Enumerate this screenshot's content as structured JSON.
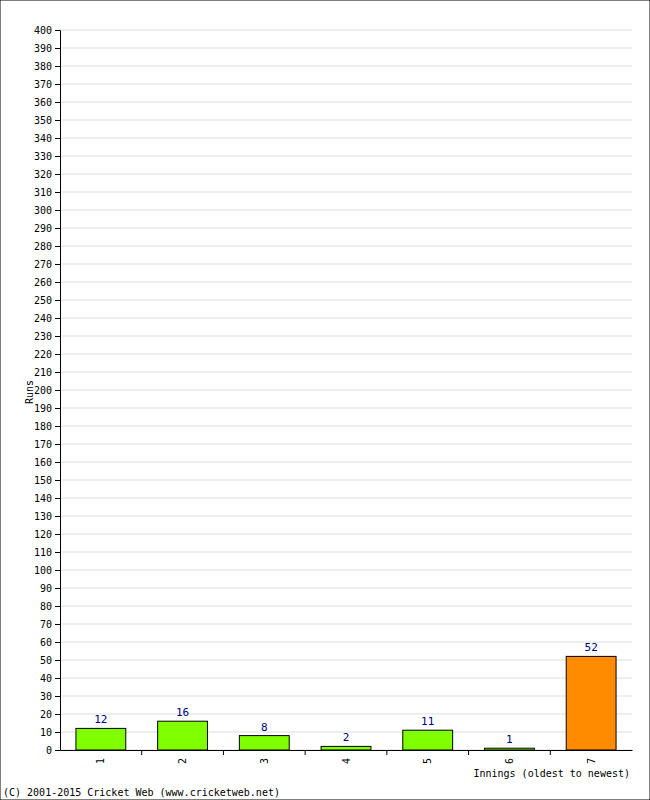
{
  "chart_data": {
    "type": "bar",
    "categories": [
      "1",
      "2",
      "3",
      "4",
      "5",
      "6",
      "7"
    ],
    "values": [
      12,
      16,
      8,
      2,
      11,
      1,
      52
    ],
    "colors": [
      "#80ff00",
      "#80ff00",
      "#80ff00",
      "#80ff00",
      "#80ff00",
      "#80ff00",
      "#ff8c00"
    ],
    "xlabel": "Innings (oldest to newest)",
    "ylabel": "Runs",
    "annotation": "(C) 2001-2015 Cricket Web (www.cricketweb.net)",
    "ylim": [
      0,
      400
    ],
    "yticks": [
      0,
      10,
      20,
      30,
      40,
      50,
      60,
      70,
      80,
      90,
      100,
      110,
      120,
      130,
      140,
      150,
      160,
      170,
      180,
      190,
      200,
      210,
      220,
      230,
      240,
      250,
      260,
      270,
      280,
      290,
      300,
      310,
      320,
      330,
      340,
      350,
      360,
      370,
      380,
      390,
      400
    ],
    "grid": true,
    "data_labels": true
  }
}
